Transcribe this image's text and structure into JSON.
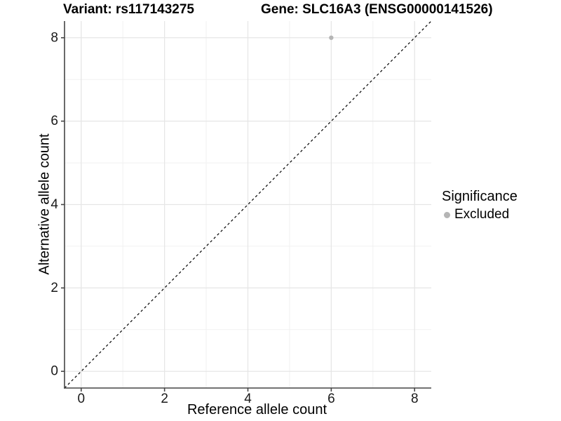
{
  "header": {
    "variant_title": "Variant: rs117143275",
    "gene_title": "Gene: SLC16A3 (ENSG00000141526)"
  },
  "chart_data": {
    "type": "scatter",
    "title": "Variant: rs117143275    Gene: SLC16A3 (ENSG00000141526)",
    "xlabel": "Reference allele count",
    "ylabel": "Alternative allele count",
    "xlim": [
      -0.4,
      8.4
    ],
    "ylim": [
      -0.4,
      8.4
    ],
    "xticks": [
      0,
      2,
      4,
      6,
      8
    ],
    "yticks": [
      0,
      2,
      4,
      6,
      8
    ],
    "minor_xticks": [
      1,
      3,
      5,
      7
    ],
    "minor_yticks": [
      1,
      3,
      5,
      7
    ],
    "grid": {
      "major": true,
      "minor": true
    },
    "reference_line": {
      "type": "identity",
      "style": "dashed",
      "color": "#000000",
      "x1": -0.4,
      "y1": -0.4,
      "x2": 8.4,
      "y2": 8.4
    },
    "series": [
      {
        "name": "Excluded",
        "color": "#b5b5b5",
        "points": [
          {
            "x": 6,
            "y": 8
          }
        ]
      }
    ],
    "legend": {
      "position": "right",
      "title": "Significance",
      "items": [
        {
          "label": "Excluded",
          "color": "#b5b5b5",
          "marker": "circle"
        }
      ]
    }
  },
  "colors": {
    "background": "#ffffff",
    "axis_line": "#454545",
    "tick_mark": "#454545",
    "tick_label": "#1a1a1a",
    "grid_major": "#e6e6e6",
    "grid_minor": "#f1f1f1",
    "title_text": "#000000"
  }
}
